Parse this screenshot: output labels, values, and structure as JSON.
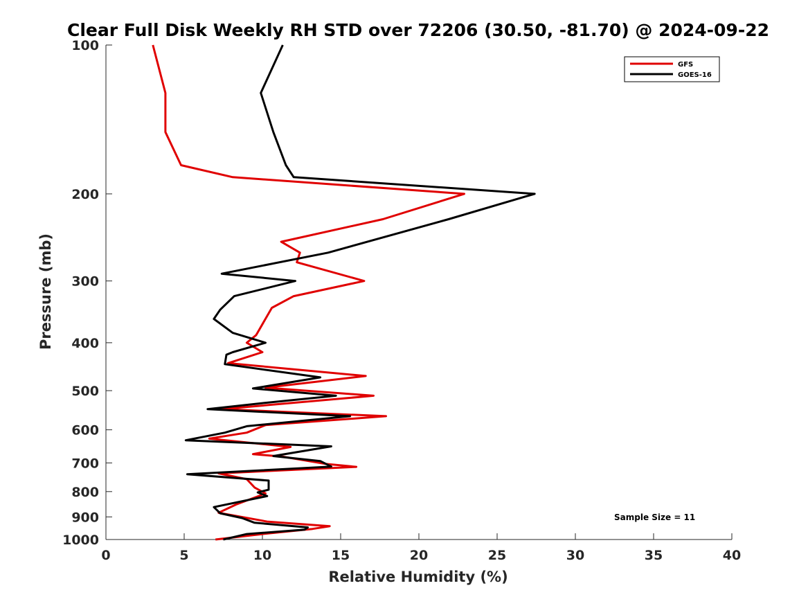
{
  "chart_data": {
    "type": "line",
    "title": "Clear Full Disk Weekly RH STD over 72206 (30.50, -81.70) @ 2024-09-22",
    "xlabel": "Relative Humidity (%)",
    "ylabel": "Pressure (mb)",
    "xlim": [
      0,
      40
    ],
    "ylim": [
      100,
      1000
    ],
    "y_scale": "log",
    "y_reversed": true,
    "x_ticks": [
      "0",
      "5",
      "10",
      "15",
      "20",
      "25",
      "30",
      "35",
      "40"
    ],
    "y_ticks": [
      "100",
      "200",
      "300",
      "400",
      "500",
      "600",
      "700",
      "800",
      "900",
      "1000"
    ],
    "grid": false,
    "legend_position": "top-right",
    "annotation": "Sample Size = 11",
    "series": [
      {
        "name": "GFS",
        "color": "#e00000",
        "points": [
          [
            3.0,
            100
          ],
          [
            3.8,
            125
          ],
          [
            3.8,
            150
          ],
          [
            4.8,
            175
          ],
          [
            8.1,
            185
          ],
          [
            22.9,
            200
          ],
          [
            17.7,
            225
          ],
          [
            11.2,
            250
          ],
          [
            12.4,
            263
          ],
          [
            12.2,
            275
          ],
          [
            16.5,
            300
          ],
          [
            12.0,
            322
          ],
          [
            10.6,
            340
          ],
          [
            9.6,
            386
          ],
          [
            9.0,
            400
          ],
          [
            10.0,
            418
          ],
          [
            7.8,
            440
          ],
          [
            16.6,
            467
          ],
          [
            10.2,
            493
          ],
          [
            17.1,
            512
          ],
          [
            7.4,
            545
          ],
          [
            17.9,
            563
          ],
          [
            10.2,
            587
          ],
          [
            9.0,
            608
          ],
          [
            6.6,
            625
          ],
          [
            11.8,
            650
          ],
          [
            9.4,
            672
          ],
          [
            11.3,
            680
          ],
          [
            14.0,
            703
          ],
          [
            16.0,
            713
          ],
          [
            7.2,
            735
          ],
          [
            9.0,
            755
          ],
          [
            9.5,
            785
          ],
          [
            10.2,
            807
          ],
          [
            8.3,
            850
          ],
          [
            7.2,
            883
          ],
          [
            10.3,
            920
          ],
          [
            14.3,
            940
          ],
          [
            13.2,
            952
          ],
          [
            10.0,
            975
          ],
          [
            7.0,
            1000
          ]
        ]
      },
      {
        "name": "GOES-16",
        "color": "#000000",
        "points": [
          [
            11.3,
            100
          ],
          [
            9.9,
            125
          ],
          [
            10.7,
            150
          ],
          [
            11.5,
            175
          ],
          [
            12.0,
            185
          ],
          [
            27.4,
            200
          ],
          [
            21.9,
            225
          ],
          [
            14.2,
            263
          ],
          [
            7.4,
            290
          ],
          [
            12.1,
            300
          ],
          [
            8.2,
            322
          ],
          [
            7.3,
            343
          ],
          [
            6.9,
            358
          ],
          [
            8.1,
            382
          ],
          [
            10.2,
            400
          ],
          [
            8.1,
            418
          ],
          [
            7.7,
            423
          ],
          [
            7.6,
            442
          ],
          [
            13.7,
            470
          ],
          [
            9.4,
            495
          ],
          [
            14.7,
            512
          ],
          [
            10.0,
            530
          ],
          [
            6.5,
            545
          ],
          [
            15.6,
            563
          ],
          [
            9.0,
            590
          ],
          [
            7.6,
            608
          ],
          [
            5.1,
            630
          ],
          [
            14.4,
            648
          ],
          [
            10.7,
            678
          ],
          [
            13.7,
            694
          ],
          [
            14.4,
            712
          ],
          [
            5.2,
            738
          ],
          [
            10.4,
            760
          ],
          [
            10.4,
            793
          ],
          [
            9.7,
            803
          ],
          [
            10.3,
            817
          ],
          [
            6.9,
            860
          ],
          [
            7.3,
            885
          ],
          [
            8.7,
            905
          ],
          [
            9.5,
            925
          ],
          [
            12.9,
            945
          ],
          [
            12.7,
            955
          ],
          [
            9.0,
            975
          ],
          [
            7.5,
            1000
          ]
        ]
      }
    ]
  }
}
